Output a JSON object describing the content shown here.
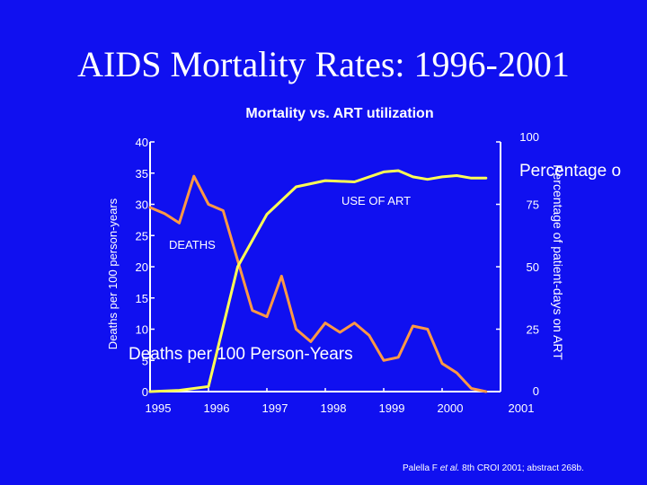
{
  "slide": {
    "title": "AIDS Mortality Rates: 1996-2001",
    "citation_prefix": "Palella F",
    "citation_italic": "et al.",
    "citation_suffix": "8th CROI 2001; abstract 268b."
  },
  "colors": {
    "background": "#1010f0",
    "deaths_line": "#ff9944",
    "art_line": "#ffff55",
    "axis": "#ffffff"
  },
  "chart_data": {
    "type": "line",
    "title": "Mortality vs. ART utilization",
    "ylabel_left": "Deaths per 100 person-years",
    "ylabel_right": "Percentage of patient-days on ART",
    "overlay_ylabel_left": "Deaths per 100 Person-Years",
    "overlay_ylabel_right": "Percentage o",
    "ylim_left": [
      0,
      40
    ],
    "ylim_right": [
      0,
      100
    ],
    "xlim": [
      1995,
      2001
    ],
    "x_tick_labels": [
      "1995",
      "1996",
      "1997",
      "1998",
      "1999",
      "2000",
      "2001"
    ],
    "left_tick_labels": [
      "0",
      "5",
      "10",
      "15",
      "20",
      "25",
      "30",
      "35",
      "40"
    ],
    "right_tick_labels": [
      "0",
      "25",
      "50",
      "75",
      "100"
    ],
    "series": [
      {
        "name": "DEATHS",
        "axis": "left",
        "x": [
          1995.0,
          1995.25,
          1995.5,
          1995.75,
          1996.0,
          1996.25,
          1996.5,
          1996.75,
          1997.0,
          1997.25,
          1997.5,
          1997.75,
          1998.0,
          1998.25,
          1998.5,
          1998.75,
          1999.0,
          1999.25,
          1999.5,
          1999.75,
          2000.0,
          2000.25,
          2000.5,
          2000.75
        ],
        "values": [
          29.5,
          28.5,
          27.0,
          34.5,
          30.0,
          29.0,
          21.0,
          13.0,
          12.0,
          18.5,
          10.0,
          8.0,
          11.0,
          9.5,
          11.0,
          9.0,
          5.0,
          5.5,
          10.5,
          10.0,
          4.5,
          3.0,
          0.5,
          0.0
        ]
      },
      {
        "name": "USE OF ART",
        "axis": "right",
        "x": [
          1995.0,
          1995.5,
          1996.0,
          1996.5,
          1997.0,
          1997.5,
          1998.0,
          1998.5,
          1999.0,
          1999.25,
          1999.5,
          1999.75,
          2000.0,
          2000.25,
          2000.5,
          2000.75
        ],
        "values": [
          0.0,
          0.5,
          2.0,
          50.0,
          71.0,
          82.0,
          84.5,
          84.0,
          88.0,
          88.5,
          86.0,
          85.0,
          86.0,
          86.5,
          85.5,
          85.5
        ]
      }
    ]
  }
}
